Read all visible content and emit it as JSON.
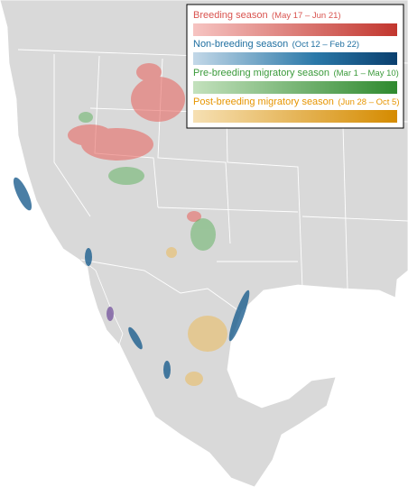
{
  "legend": [
    {
      "label": "Breeding season",
      "dates": "(May 17 – Jun 21)"
    },
    {
      "label": "Non-breeding season",
      "dates": "(Oct 12 – Feb 22)"
    },
    {
      "label": "Pre-breeding migratory season",
      "dates": "(Mar 1 – May 10)"
    },
    {
      "label": "Post-breeding migratory season",
      "dates": "(Jun 28 – Oct 5)"
    }
  ]
}
